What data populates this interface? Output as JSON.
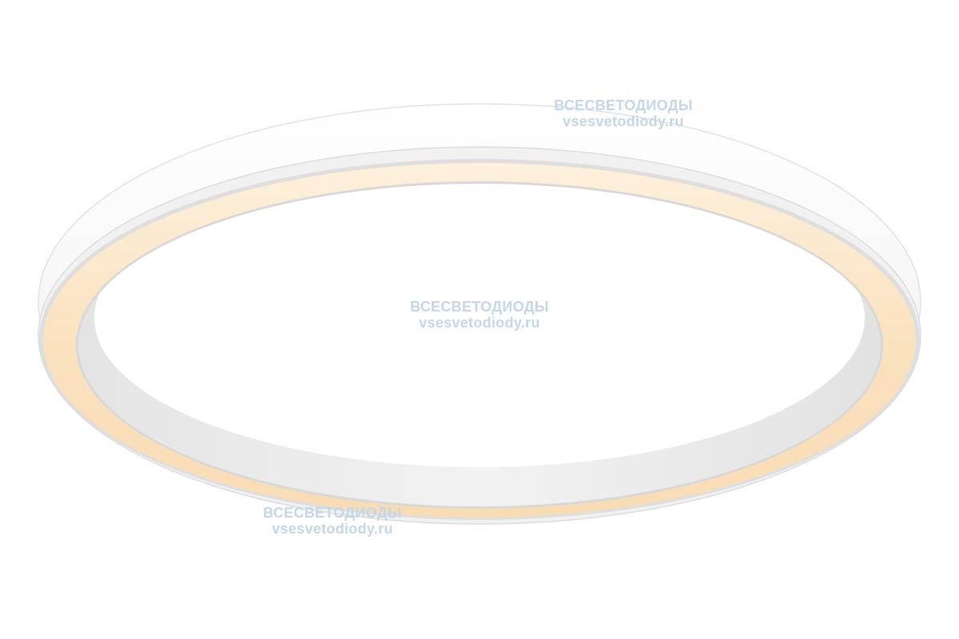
{
  "product": {
    "name": "ring-ceiling-lamp",
    "colors": {
      "body": "#ffffff",
      "body_shade": "#e6e6e6",
      "diffuser": "#fbe2bf",
      "watermark": "#c3d7e7"
    }
  },
  "watermarks": [
    {
      "line1": "ВСЕСВЕТОДИОДЫ",
      "line2": "vsesvetodiody.ru"
    },
    {
      "line1": "ВСЕСВЕТОДИОДЫ",
      "line2": "vsesvetodiody.ru"
    },
    {
      "line1": "ВСЕСВЕТОДИОДЫ",
      "line2": "vsesvetodiody.ru"
    }
  ]
}
